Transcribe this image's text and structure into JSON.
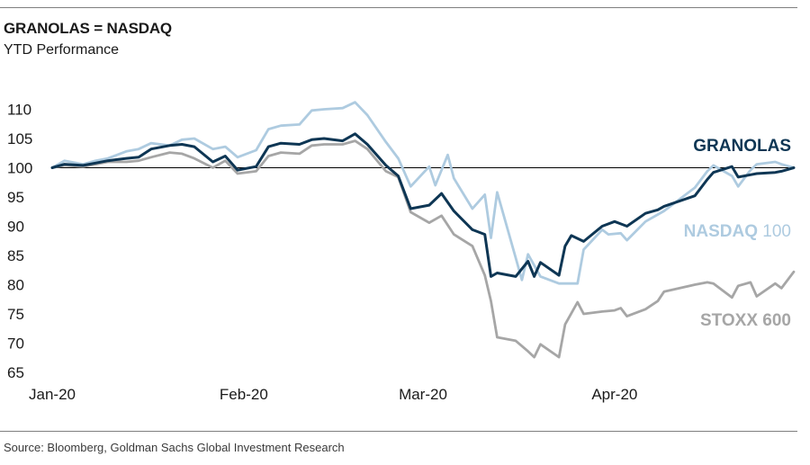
{
  "header": {
    "title": "GRANOLAS = NASDAQ",
    "subtitle": "YTD Performance"
  },
  "footer": {
    "source": "Source: Bloomberg, Goldman Sachs Global Investment Research"
  },
  "chart_data": {
    "type": "line",
    "title": "GRANOLAS = NASDAQ",
    "subtitle": "YTD Performance",
    "xlabel": "",
    "ylabel": "",
    "x_range": [
      "2020-01-01",
      "2020-04-30"
    ],
    "ylim": [
      65,
      112
    ],
    "yticks": [
      65,
      70,
      75,
      80,
      85,
      90,
      95,
      100,
      105,
      110
    ],
    "xticks": [
      {
        "label": "Jan-20",
        "date": "2020-01-01"
      },
      {
        "label": "Feb-20",
        "date": "2020-02-01"
      },
      {
        "label": "Mar-20",
        "date": "2020-03-01"
      },
      {
        "label": "Apr-20",
        "date": "2020-04-01"
      }
    ],
    "reference_line": 100,
    "grid": false,
    "legend": "inline labels at right end of each series",
    "series": [
      {
        "name": "STOXX 600",
        "label_parts": [
          "STOXX 600"
        ],
        "color": "#a6a6a6",
        "points": [
          [
            "2020-01-01",
            100
          ],
          [
            "2020-01-03",
            100.4
          ],
          [
            "2020-01-06",
            100.2
          ],
          [
            "2020-01-08",
            100.6
          ],
          [
            "2020-01-10",
            101.0
          ],
          [
            "2020-01-13",
            101.0
          ],
          [
            "2020-01-15",
            101.2
          ],
          [
            "2020-01-17",
            101.8
          ],
          [
            "2020-01-20",
            102.6
          ],
          [
            "2020-01-22",
            102.4
          ],
          [
            "2020-01-24",
            101.6
          ],
          [
            "2020-01-27",
            100.0
          ],
          [
            "2020-01-29",
            101.2
          ],
          [
            "2020-01-31",
            99.0
          ],
          [
            "2020-02-03",
            99.4
          ],
          [
            "2020-02-05",
            102.0
          ],
          [
            "2020-02-07",
            102.6
          ],
          [
            "2020-02-10",
            102.4
          ],
          [
            "2020-02-12",
            103.8
          ],
          [
            "2020-02-14",
            104.0
          ],
          [
            "2020-02-17",
            104.0
          ],
          [
            "2020-02-19",
            104.6
          ],
          [
            "2020-02-21",
            103.2
          ],
          [
            "2020-02-24",
            99.4
          ],
          [
            "2020-02-26",
            98.4
          ],
          [
            "2020-02-28",
            92.4
          ],
          [
            "2020-03-02",
            90.6
          ],
          [
            "2020-03-04",
            91.8
          ],
          [
            "2020-03-06",
            88.6
          ],
          [
            "2020-03-09",
            86.6
          ],
          [
            "2020-03-11",
            81.6
          ],
          [
            "2020-03-12",
            77.2
          ],
          [
            "2020-03-13",
            71.0
          ],
          [
            "2020-03-16",
            70.4
          ],
          [
            "2020-03-18",
            68.6
          ],
          [
            "2020-03-19",
            67.6
          ],
          [
            "2020-03-20",
            69.8
          ],
          [
            "2020-03-23",
            67.6
          ],
          [
            "2020-03-24",
            73.2
          ],
          [
            "2020-03-26",
            77.0
          ],
          [
            "2020-03-27",
            75.0
          ],
          [
            "2020-03-30",
            75.4
          ],
          [
            "2020-04-01",
            75.6
          ],
          [
            "2020-04-02",
            76.0
          ],
          [
            "2020-04-03",
            74.6
          ],
          [
            "2020-04-06",
            75.8
          ],
          [
            "2020-04-08",
            77.2
          ],
          [
            "2020-04-09",
            78.8
          ],
          [
            "2020-04-14",
            80.0
          ],
          [
            "2020-04-16",
            80.4
          ],
          [
            "2020-04-17",
            80.2
          ],
          [
            "2020-04-20",
            77.8
          ],
          [
            "2020-04-21",
            79.8
          ],
          [
            "2020-04-23",
            80.4
          ],
          [
            "2020-04-24",
            78.0
          ],
          [
            "2020-04-27",
            80.2
          ],
          [
            "2020-04-28",
            79.4
          ],
          [
            "2020-04-30",
            82.2
          ]
        ]
      },
      {
        "name": "NASDAQ 100",
        "label_parts": [
          "NASDAQ",
          " 100"
        ],
        "color": "#aecbe0",
        "points": [
          [
            "2020-01-01",
            100
          ],
          [
            "2020-01-03",
            101.2
          ],
          [
            "2020-01-06",
            100.6
          ],
          [
            "2020-01-08",
            101.2
          ],
          [
            "2020-01-10",
            101.6
          ],
          [
            "2020-01-13",
            102.8
          ],
          [
            "2020-01-15",
            103.2
          ],
          [
            "2020-01-17",
            104.2
          ],
          [
            "2020-01-20",
            103.8
          ],
          [
            "2020-01-22",
            104.8
          ],
          [
            "2020-01-24",
            105.0
          ],
          [
            "2020-01-27",
            103.2
          ],
          [
            "2020-01-29",
            103.6
          ],
          [
            "2020-01-31",
            101.8
          ],
          [
            "2020-02-03",
            103.0
          ],
          [
            "2020-02-05",
            106.6
          ],
          [
            "2020-02-07",
            107.2
          ],
          [
            "2020-02-10",
            107.4
          ],
          [
            "2020-02-12",
            109.8
          ],
          [
            "2020-02-14",
            110.0
          ],
          [
            "2020-02-17",
            110.2
          ],
          [
            "2020-02-19",
            111.2
          ],
          [
            "2020-02-21",
            109.0
          ],
          [
            "2020-02-24",
            104.4
          ],
          [
            "2020-02-26",
            101.6
          ],
          [
            "2020-02-28",
            96.8
          ],
          [
            "2020-03-02",
            100.2
          ],
          [
            "2020-03-03",
            97.0
          ],
          [
            "2020-03-05",
            102.2
          ],
          [
            "2020-03-06",
            98.2
          ],
          [
            "2020-03-09",
            93.0
          ],
          [
            "2020-03-11",
            95.4
          ],
          [
            "2020-03-12",
            88.0
          ],
          [
            "2020-03-13",
            95.8
          ],
          [
            "2020-03-16",
            84.6
          ],
          [
            "2020-03-17",
            80.8
          ],
          [
            "2020-03-18",
            85.2
          ],
          [
            "2020-03-20",
            81.4
          ],
          [
            "2020-03-23",
            80.2
          ],
          [
            "2020-03-26",
            80.2
          ],
          [
            "2020-03-27",
            86.0
          ],
          [
            "2020-03-30",
            89.4
          ],
          [
            "2020-03-31",
            88.6
          ],
          [
            "2020-04-02",
            88.8
          ],
          [
            "2020-04-03",
            87.6
          ],
          [
            "2020-04-06",
            90.8
          ],
          [
            "2020-04-08",
            92.0
          ],
          [
            "2020-04-09",
            92.6
          ],
          [
            "2020-04-14",
            96.6
          ],
          [
            "2020-04-16",
            99.4
          ],
          [
            "2020-04-17",
            100.4
          ],
          [
            "2020-04-20",
            98.6
          ],
          [
            "2020-04-21",
            96.8
          ],
          [
            "2020-04-23",
            99.6
          ],
          [
            "2020-04-24",
            100.6
          ],
          [
            "2020-04-27",
            101.0
          ],
          [
            "2020-04-28",
            100.6
          ],
          [
            "2020-04-30",
            100.0
          ]
        ]
      },
      {
        "name": "GRANOLAS",
        "label_parts": [
          "GRANOLAS"
        ],
        "color": "#0e3654",
        "points": [
          [
            "2020-01-01",
            100
          ],
          [
            "2020-01-03",
            100.6
          ],
          [
            "2020-01-06",
            100.4
          ],
          [
            "2020-01-08",
            100.8
          ],
          [
            "2020-01-10",
            101.2
          ],
          [
            "2020-01-13",
            101.6
          ],
          [
            "2020-01-15",
            101.8
          ],
          [
            "2020-01-17",
            103.2
          ],
          [
            "2020-01-20",
            103.8
          ],
          [
            "2020-01-22",
            104.0
          ],
          [
            "2020-01-24",
            103.6
          ],
          [
            "2020-01-27",
            101.0
          ],
          [
            "2020-01-29",
            102.0
          ],
          [
            "2020-01-31",
            99.6
          ],
          [
            "2020-02-03",
            100.2
          ],
          [
            "2020-02-05",
            103.6
          ],
          [
            "2020-02-07",
            104.2
          ],
          [
            "2020-02-10",
            104.0
          ],
          [
            "2020-02-12",
            104.8
          ],
          [
            "2020-02-14",
            105.0
          ],
          [
            "2020-02-17",
            104.6
          ],
          [
            "2020-02-19",
            105.8
          ],
          [
            "2020-02-21",
            104.0
          ],
          [
            "2020-02-24",
            100.4
          ],
          [
            "2020-02-26",
            98.6
          ],
          [
            "2020-02-28",
            93.0
          ],
          [
            "2020-03-02",
            93.6
          ],
          [
            "2020-03-04",
            95.6
          ],
          [
            "2020-03-06",
            92.6
          ],
          [
            "2020-03-09",
            89.4
          ],
          [
            "2020-03-11",
            88.6
          ],
          [
            "2020-03-12",
            81.4
          ],
          [
            "2020-03-13",
            82.0
          ],
          [
            "2020-03-16",
            81.4
          ],
          [
            "2020-03-18",
            84.0
          ],
          [
            "2020-03-19",
            81.4
          ],
          [
            "2020-03-20",
            83.8
          ],
          [
            "2020-03-23",
            81.6
          ],
          [
            "2020-03-24",
            86.6
          ],
          [
            "2020-03-25",
            88.4
          ],
          [
            "2020-03-27",
            87.4
          ],
          [
            "2020-03-30",
            90.0
          ],
          [
            "2020-04-01",
            90.8
          ],
          [
            "2020-04-02",
            90.4
          ],
          [
            "2020-04-03",
            90.0
          ],
          [
            "2020-04-06",
            92.2
          ],
          [
            "2020-04-08",
            92.8
          ],
          [
            "2020-04-09",
            93.4
          ],
          [
            "2020-04-14",
            95.2
          ],
          [
            "2020-04-16",
            98.0
          ],
          [
            "2020-04-17",
            99.2
          ],
          [
            "2020-04-20",
            100.2
          ],
          [
            "2020-04-21",
            98.4
          ],
          [
            "2020-04-23",
            98.8
          ],
          [
            "2020-04-24",
            99.0
          ],
          [
            "2020-04-27",
            99.2
          ],
          [
            "2020-04-28",
            99.4
          ],
          [
            "2020-04-30",
            100.0
          ]
        ]
      }
    ]
  }
}
